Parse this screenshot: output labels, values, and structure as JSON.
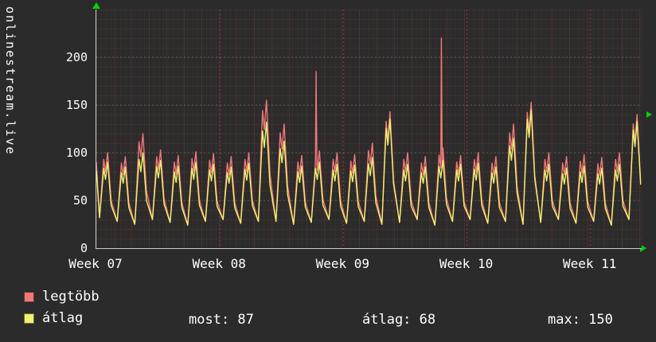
{
  "app": {
    "watermark": "onlinestream.live"
  },
  "colors": {
    "background": "#2b2b2b",
    "text": "#ffffff",
    "axis": "#c9c9c9",
    "arrow": "#00d400",
    "grid_major_x": "#ff5555",
    "grid_major_y": "#c0c0c0",
    "series_legtobb": "#f07878",
    "series_atlag": "#f0f070"
  },
  "legend": {
    "items": [
      {
        "label": "legtöbb",
        "color": "#f07878"
      },
      {
        "label": "átlag",
        "color": "#f0f070"
      }
    ]
  },
  "stats": [
    {
      "text": "most: 87"
    },
    {
      "text": "átlag: 68"
    },
    {
      "text": "max: 150"
    }
  ],
  "chart_data": {
    "type": "line",
    "title": "",
    "xlabel": "",
    "ylabel": "",
    "ylim": [
      0,
      250
    ],
    "yticks": [
      0,
      50,
      100,
      150,
      200
    ],
    "xticks": [
      {
        "day": 0,
        "label": "Week 07"
      },
      {
        "day": 7,
        "label": "Week 08"
      },
      {
        "day": 14,
        "label": "Week 09"
      },
      {
        "day": 21,
        "label": "Week 10"
      },
      {
        "day": 28,
        "label": "Week 11"
      }
    ],
    "x_range_days": [
      0,
      30.9
    ],
    "grid": true,
    "legend_position": "bottom-left",
    "daily_entries_format": [
      "trough",
      "legtobb_peak",
      "atlag_peak"
    ],
    "daily": [
      [
        32,
        100,
        90
      ],
      [
        28,
        96,
        85
      ],
      [
        25,
        120,
        100
      ],
      [
        30,
        103,
        92
      ],
      [
        27,
        97,
        86
      ],
      [
        24,
        101,
        90
      ],
      [
        28,
        99,
        88
      ],
      [
        30,
        96,
        85
      ],
      [
        26,
        100,
        89
      ],
      [
        28,
        155,
        132
      ],
      [
        28,
        130,
        112
      ],
      [
        25,
        97,
        86
      ],
      [
        27,
        102,
        90
      ],
      [
        30,
        100,
        88
      ],
      [
        26,
        98,
        87
      ],
      [
        28,
        110,
        95
      ],
      [
        25,
        143,
        135
      ],
      [
        27,
        100,
        88
      ],
      [
        30,
        96,
        85
      ],
      [
        24,
        105,
        92
      ],
      [
        28,
        97,
        88
      ],
      [
        30,
        100,
        89
      ],
      [
        26,
        96,
        85
      ],
      [
        28,
        130,
        115
      ],
      [
        25,
        153,
        145
      ],
      [
        27,
        100,
        88
      ],
      [
        30,
        96,
        84
      ],
      [
        26,
        98,
        86
      ],
      [
        28,
        95,
        84
      ],
      [
        24,
        100,
        88
      ],
      [
        30,
        140,
        133
      ]
    ],
    "spikes_legtobb": [
      {
        "day": 12.45,
        "value": 185
      },
      {
        "day": 19.55,
        "value": 220
      }
    ],
    "series_meta": [
      {
        "name": "legtöbb",
        "color": "#f07878"
      },
      {
        "name": "átlag",
        "color": "#f0f070"
      }
    ],
    "summary": {
      "most": 87,
      "atlag": 68,
      "max": 150
    }
  }
}
